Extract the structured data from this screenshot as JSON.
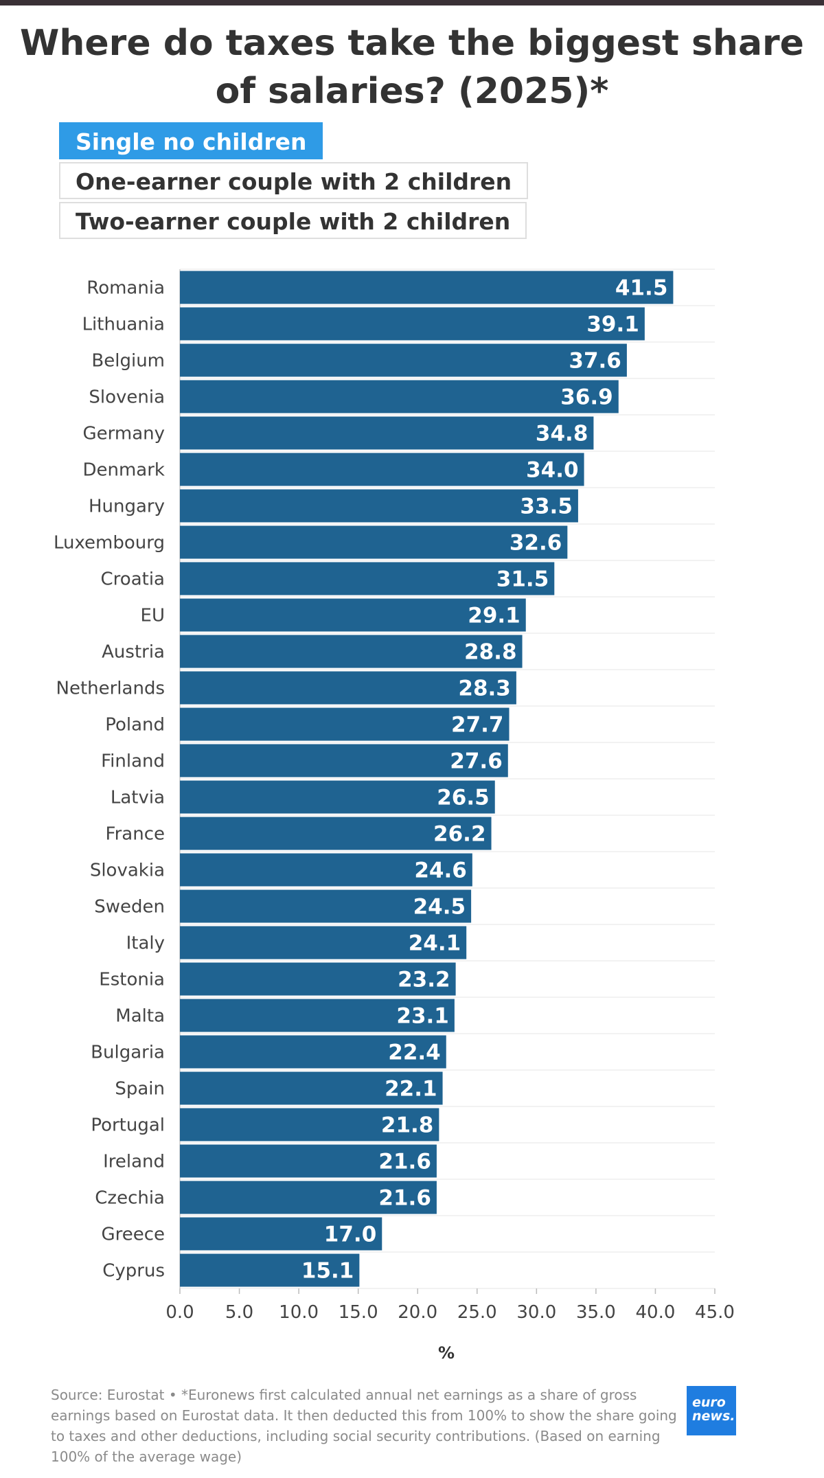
{
  "chart_data": {
    "type": "bar",
    "orientation": "horizontal",
    "title": "Where do taxes take the biggest share of salaries? (2025)*",
    "categories": [
      "Romania",
      "Lithuania",
      "Belgium",
      "Slovenia",
      "Germany",
      "Denmark",
      "Hungary",
      "Luxembourg",
      "Croatia",
      "EU",
      "Austria",
      "Netherlands",
      "Poland",
      "Finland",
      "Latvia",
      "France",
      "Slovakia",
      "Sweden",
      "Italy",
      "Estonia",
      "Malta",
      "Bulgaria",
      "Spain",
      "Portugal",
      "Ireland",
      "Czechia",
      "Greece",
      "Cyprus"
    ],
    "values": [
      41.5,
      39.1,
      37.6,
      36.9,
      34.8,
      34.0,
      33.5,
      32.6,
      31.5,
      29.1,
      28.8,
      28.3,
      27.7,
      27.6,
      26.5,
      26.2,
      24.6,
      24.5,
      24.1,
      23.2,
      23.1,
      22.4,
      22.1,
      21.8,
      21.6,
      21.6,
      17.0,
      15.1
    ],
    "value_labels": [
      "41.5",
      "39.1",
      "37.6",
      "36.9",
      "34.8",
      "34.0",
      "33.5",
      "32.6",
      "31.5",
      "29.1",
      "28.8",
      "28.3",
      "27.7",
      "27.6",
      "26.5",
      "26.2",
      "24.6",
      "24.5",
      "24.1",
      "23.2",
      "23.1",
      "22.4",
      "22.1",
      "21.8",
      "21.6",
      "21.6",
      "17.0",
      "15.1"
    ],
    "xlabel": "%",
    "ylabel": "",
    "xlim": [
      0,
      45
    ],
    "xticks": [
      "0.0",
      "5.0",
      "10.0",
      "15.0",
      "20.0",
      "25.0",
      "30.0",
      "35.0",
      "40.0",
      "45.0"
    ],
    "grid": true,
    "bar_color": "#1f6391"
  },
  "tabs": [
    {
      "label": "Single no children",
      "active": true
    },
    {
      "label": "One-earner couple with 2 children",
      "active": false
    },
    {
      "label": "Two-earner couple with 2 children",
      "active": false
    }
  ],
  "footnote": "Source: Eurostat • *Euronews first calculated annual net earnings as a share of gross earnings based on Eurostat data. It then deducted this from 100% to show the share going to taxes and other deductions, including social security contributions. (Based on earning 100% of the average wage)",
  "logo": {
    "line1": "euro",
    "line2": "news."
  },
  "colors": {
    "active_tab": "#2f9be6",
    "bar": "#1f6391",
    "logo": "#1f7de0"
  }
}
